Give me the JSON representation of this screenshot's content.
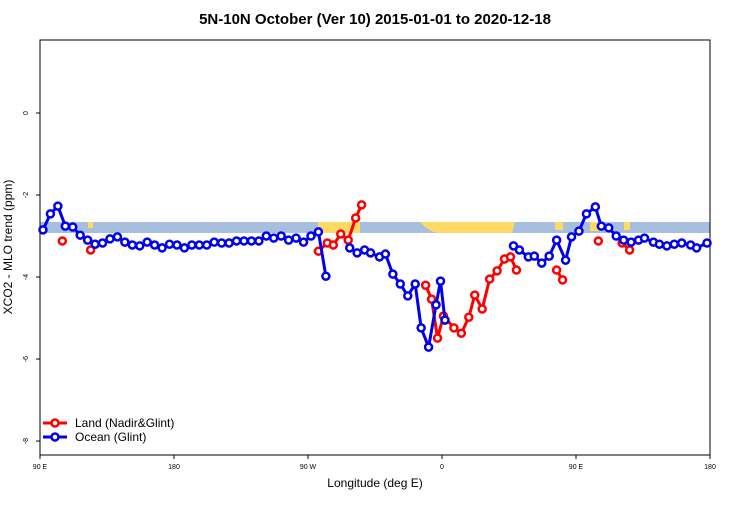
{
  "chart_data": {
    "type": "line",
    "title": "5N-10N October (Ver 10)   2015-01-01 to 2020-12-18",
    "x_label": "Longitude (deg E)",
    "y_label": "XCO2 - MLO trend (ppm)",
    "xlim": [
      90,
      540
    ],
    "xticks": [
      {
        "value": 90,
        "label": "90 E"
      },
      {
        "value": 180,
        "label": "180"
      },
      {
        "value": 270,
        "label": "90 W"
      },
      {
        "value": 360,
        "label": "0"
      },
      {
        "value": 450,
        "label": "90 E"
      },
      {
        "value": 540,
        "label": "180"
      }
    ],
    "ylim": [
      -8.34,
      1.78
    ],
    "yticks": [
      0,
      -2,
      -4,
      -6,
      -8
    ],
    "legend": "bottom-left",
    "series": [
      {
        "name": "Land (Nadir&Glint)",
        "color": "#ff0000",
        "x": [
          105,
          113,
          124,
          127,
          200,
          277,
          283,
          287,
          292,
          297,
          302,
          306,
          330,
          349,
          353,
          357,
          361,
          368,
          373,
          378,
          382,
          387,
          392,
          397,
          402,
          406,
          410,
          425,
          437,
          441,
          455,
          465,
          475,
          481,
          486
        ],
        "values": [
          -3.12,
          null,
          -3.34,
          -3.2,
          null,
          -3.37,
          -3.17,
          -3.22,
          -2.95,
          -3.1,
          -2.56,
          -2.24,
          null,
          -4.2,
          -4.54,
          -5.49,
          -4.95,
          -5.24,
          -5.37,
          -4.98,
          -4.44,
          -4.78,
          -4.05,
          -3.85,
          -3.56,
          -3.51,
          -3.83,
          null,
          -3.83,
          -4.07,
          null,
          -3.12,
          null,
          -3.17,
          -3.34
        ]
      },
      {
        "name": "Ocean (Glint)",
        "color": "#0000ee",
        "x": [
          92,
          97,
          102,
          107,
          112,
          117,
          122,
          127,
          132,
          137,
          142,
          147,
          152,
          157,
          162,
          167,
          172,
          177,
          182,
          187,
          192,
          197,
          202,
          207,
          212,
          217,
          222,
          227,
          232,
          237,
          242,
          247,
          252,
          257,
          262,
          267,
          272,
          277,
          282,
          290,
          298,
          303,
          308,
          312,
          318,
          322,
          327,
          332,
          337,
          342,
          346,
          351,
          356,
          359,
          362,
          385,
          408,
          412,
          418,
          422,
          427,
          432,
          437,
          443,
          447,
          452,
          457,
          463,
          467,
          472,
          477,
          482,
          487,
          492,
          496,
          502,
          506,
          511,
          516,
          521,
          527,
          531,
          538
        ],
        "values": [
          -2.85,
          -2.46,
          -2.27,
          -2.76,
          -2.78,
          -2.98,
          -3.1,
          -3.2,
          -3.17,
          -3.07,
          -3.02,
          -3.15,
          -3.22,
          -3.24,
          -3.15,
          -3.22,
          -3.29,
          -3.2,
          -3.22,
          -3.29,
          -3.22,
          -3.22,
          -3.22,
          -3.15,
          -3.17,
          -3.17,
          -3.12,
          -3.12,
          -3.12,
          -3.12,
          -3.0,
          -3.05,
          -3.0,
          -3.1,
          -3.05,
          -3.15,
          -3.0,
          -2.9,
          -3.98,
          null,
          -3.29,
          -3.41,
          -3.34,
          -3.41,
          -3.51,
          -3.44,
          -3.93,
          -4.17,
          -4.46,
          -4.17,
          -5.24,
          -5.71,
          -4.68,
          -4.1,
          -5.05,
          null,
          -3.24,
          -3.34,
          -3.51,
          -3.49,
          -3.66,
          -3.49,
          -3.1,
          -3.59,
          -3.02,
          -2.88,
          -2.46,
          -2.29,
          -2.76,
          -2.8,
          -3.0,
          -3.1,
          -3.15,
          -3.1,
          -3.05,
          -3.15,
          -3.2,
          -3.24,
          -3.2,
          -3.17,
          -3.22,
          -3.29,
          -3.17
        ]
      }
    ]
  }
}
